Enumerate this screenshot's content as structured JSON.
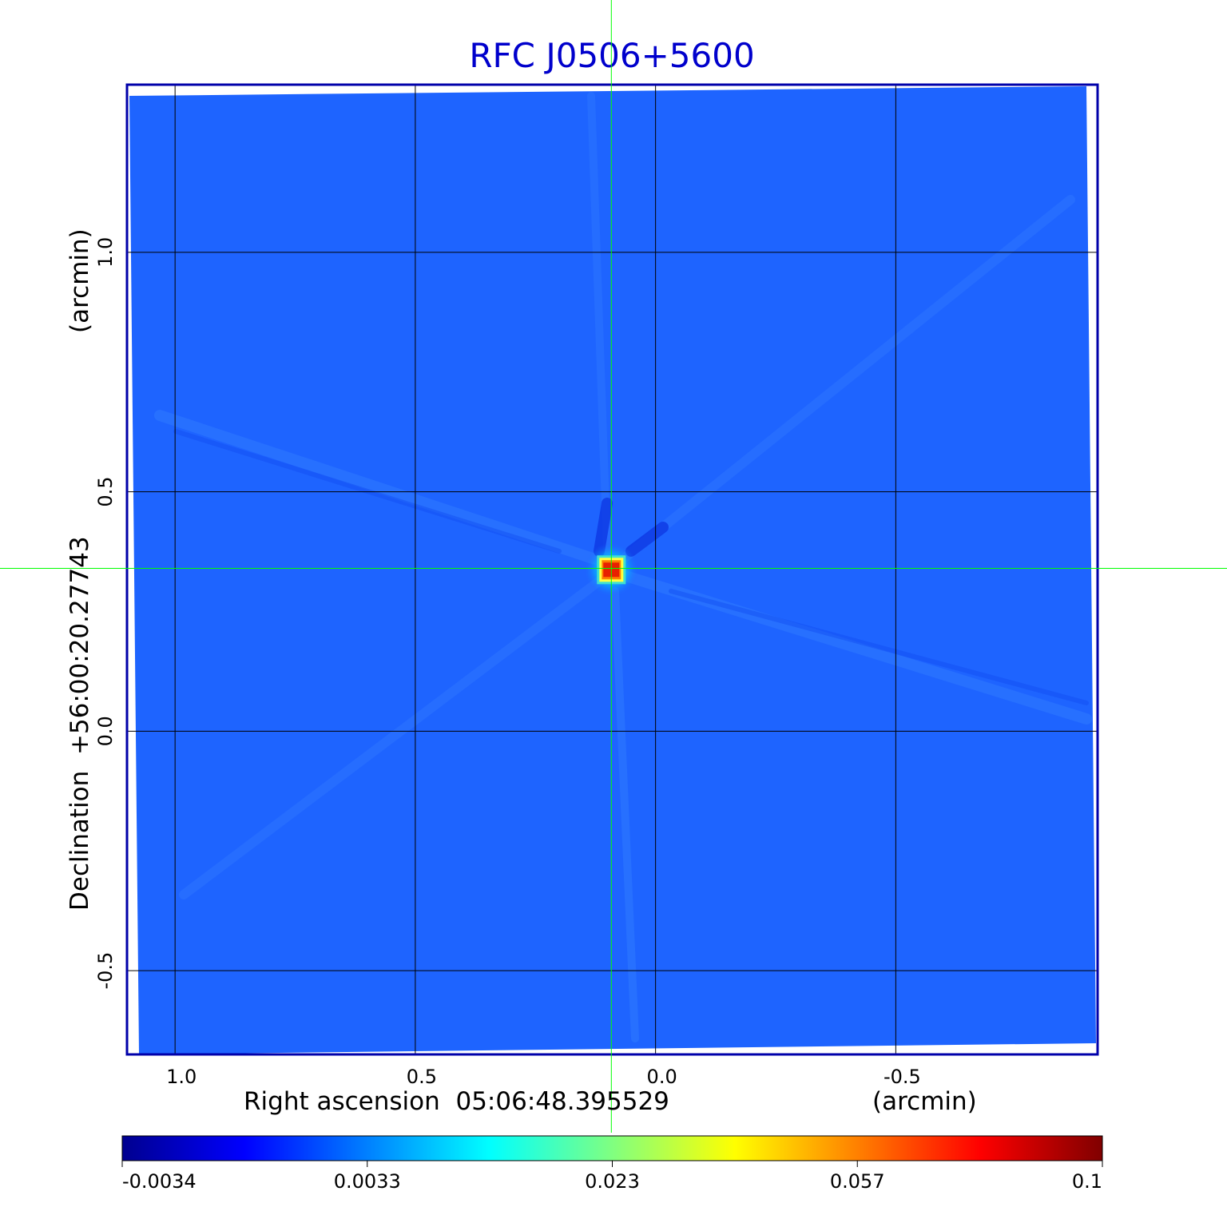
{
  "chart_data": {
    "type": "heatmap",
    "title": "RFC J0506+5600",
    "xlabel": "Right ascension  05:06:48.395529",
    "xunit": "(arcmin)",
    "ylabel": "Declination  +56:00:20.27743",
    "yunit": "(arcmin)",
    "x_ticks": [
      "1.0",
      "0.5",
      "0.0",
      "-0.5"
    ],
    "x_tick_values": [
      1.0,
      0.5,
      0.0,
      -0.5
    ],
    "y_ticks": [
      "1.0",
      "0.5",
      "0.0",
      "-0.5"
    ],
    "y_tick_values": [
      1.0,
      0.5,
      0.0,
      -0.5
    ],
    "xlim": [
      1.1,
      -0.92
    ],
    "ylim": [
      -0.675,
      1.35
    ],
    "grid": true,
    "crosshair": {
      "x": 0.092,
      "y": 0.34
    },
    "source": {
      "x": 0.092,
      "y": 0.337,
      "peak": 0.1
    },
    "colorbar": {
      "ticks": [
        "-0.0034",
        "0.0033",
        "0.023",
        "0.057",
        "0.1"
      ],
      "tick_values": [
        -0.0034,
        0.0033,
        0.023,
        0.057,
        0.1
      ],
      "colors": [
        "#00008f",
        "#0000ff",
        "#0080ff",
        "#00ffff",
        "#80ff80",
        "#ffff00",
        "#ff8000",
        "#ff0000",
        "#800000"
      ]
    },
    "colors": {
      "background": "#1e64ff",
      "frame": "#0000aa",
      "title": "#0000cc",
      "crosshair": "#00ff00",
      "grid": "#000000"
    }
  }
}
